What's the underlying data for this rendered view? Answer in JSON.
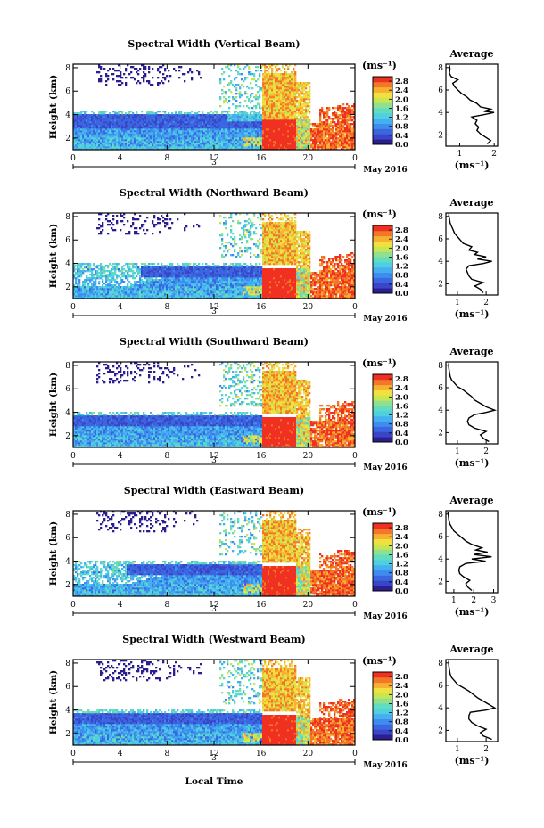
{
  "figure": {
    "xlabel": "Local Time",
    "day_label": "3",
    "month_label": "May 2016",
    "colors": [
      "#2b1f8f",
      "#3a45c8",
      "#3a66e0",
      "#3f8cf0",
      "#45b0f0",
      "#50cfe0",
      "#60dcc0",
      "#90e090",
      "#c8e650",
      "#f0e040",
      "#f8b030",
      "#f07828",
      "#f03020"
    ]
  },
  "chart_data": [
    {
      "type": "heatmap",
      "title": "Spectral Width (Vertical Beam)",
      "ylabel": "Height (km)",
      "x_ticks": [
        "0",
        "4",
        "8",
        "12",
        "16",
        "20",
        "0"
      ],
      "y_ticks": [
        "2",
        "4",
        "6",
        "8"
      ],
      "xlim": [
        0,
        24
      ],
      "ylim": [
        1,
        8.3
      ],
      "colorbar": {
        "label": "(ms⁻¹)",
        "ticks": [
          "0.0",
          "0.4",
          "0.8",
          "1.2",
          "1.6",
          "2.0",
          "2.4",
          "2.8"
        ],
        "range": [
          0,
          3.0
        ]
      },
      "profile": {
        "title": "Average",
        "xlabel": "(ms⁻¹)",
        "x_ticks": [
          "1",
          "2"
        ],
        "xlim": [
          0.6,
          2.1
        ],
        "y_ticks": [
          "2",
          "4",
          "6",
          "8"
        ],
        "points": [
          [
            1.8,
            1.2
          ],
          [
            1.9,
            1.5
          ],
          [
            1.75,
            1.8
          ],
          [
            1.6,
            2.1
          ],
          [
            1.5,
            2.4
          ],
          [
            1.55,
            2.7
          ],
          [
            1.45,
            3.0
          ],
          [
            1.5,
            3.3
          ],
          [
            1.35,
            3.6
          ],
          [
            1.7,
            3.8
          ],
          [
            1.85,
            3.9
          ],
          [
            2.0,
            4.0
          ],
          [
            1.7,
            4.1
          ],
          [
            1.9,
            4.3
          ],
          [
            1.6,
            4.5
          ],
          [
            1.5,
            4.8
          ],
          [
            1.3,
            5.1
          ],
          [
            1.2,
            5.4
          ],
          [
            1.05,
            5.7
          ],
          [
            0.95,
            6.0
          ],
          [
            0.85,
            6.3
          ],
          [
            0.8,
            6.6
          ],
          [
            0.95,
            6.9
          ],
          [
            0.75,
            7.2
          ],
          [
            0.7,
            7.5
          ],
          [
            0.72,
            7.9
          ],
          [
            0.7,
            8.2
          ]
        ]
      }
    },
    {
      "type": "heatmap",
      "title": "Spectral Width (Northward Beam)",
      "ylabel": "Height (km)",
      "x_ticks": [
        "0",
        "4",
        "8",
        "12",
        "16",
        "20",
        "0"
      ],
      "y_ticks": [
        "2",
        "4",
        "6",
        "8"
      ],
      "xlim": [
        0,
        24
      ],
      "ylim": [
        1,
        8.3
      ],
      "colorbar": {
        "label": "(ms⁻¹)",
        "ticks": [
          "0.0",
          "0.4",
          "0.8",
          "1.2",
          "1.6",
          "2.0",
          "2.4",
          "2.8"
        ],
        "range": [
          0,
          3.0
        ]
      },
      "profile": {
        "title": "Average",
        "xlabel": "(ms⁻¹)",
        "x_ticks": [
          "1",
          "2"
        ],
        "xlim": [
          0.6,
          2.4
        ],
        "y_ticks": [
          "2",
          "4",
          "6",
          "8"
        ],
        "points": [
          [
            1.9,
            1.2
          ],
          [
            1.8,
            1.5
          ],
          [
            1.6,
            1.8
          ],
          [
            1.9,
            2.1
          ],
          [
            1.5,
            2.4
          ],
          [
            1.4,
            2.7
          ],
          [
            1.35,
            3.0
          ],
          [
            1.3,
            3.3
          ],
          [
            1.4,
            3.6
          ],
          [
            1.9,
            3.8
          ],
          [
            2.2,
            4.0
          ],
          [
            1.7,
            4.2
          ],
          [
            2.0,
            4.4
          ],
          [
            1.6,
            4.6
          ],
          [
            1.7,
            4.8
          ],
          [
            1.4,
            5.0
          ],
          [
            1.5,
            5.3
          ],
          [
            1.2,
            5.6
          ],
          [
            1.1,
            5.9
          ],
          [
            1.0,
            6.2
          ],
          [
            0.9,
            6.5
          ],
          [
            0.85,
            6.8
          ],
          [
            0.8,
            7.1
          ],
          [
            0.75,
            7.4
          ],
          [
            0.72,
            7.8
          ],
          [
            0.7,
            8.2
          ]
        ]
      }
    },
    {
      "type": "heatmap",
      "title": "Spectral Width (Southward Beam)",
      "ylabel": "Height (km)",
      "x_ticks": [
        "0",
        "4",
        "8",
        "12",
        "16",
        "20",
        "0"
      ],
      "y_ticks": [
        "2",
        "4",
        "6",
        "8"
      ],
      "xlim": [
        0,
        24
      ],
      "ylim": [
        1,
        8.3
      ],
      "colorbar": {
        "label": "(ms⁻¹)",
        "ticks": [
          "0.0",
          "0.4",
          "0.8",
          "1.2",
          "1.6",
          "2.0",
          "2.4",
          "2.8"
        ],
        "range": [
          0,
          3.0
        ]
      },
      "profile": {
        "title": "Average",
        "xlabel": "(ms⁻¹)",
        "x_ticks": [
          "1",
          "2"
        ],
        "xlim": [
          0.6,
          2.4
        ],
        "y_ticks": [
          "2",
          "4",
          "6",
          "8"
        ],
        "points": [
          [
            2.1,
            1.2
          ],
          [
            1.9,
            1.5
          ],
          [
            1.8,
            1.8
          ],
          [
            2.0,
            2.1
          ],
          [
            1.6,
            2.4
          ],
          [
            1.4,
            2.7
          ],
          [
            1.35,
            3.0
          ],
          [
            1.4,
            3.3
          ],
          [
            1.6,
            3.6
          ],
          [
            2.0,
            3.8
          ],
          [
            2.3,
            4.0
          ],
          [
            2.0,
            4.3
          ],
          [
            1.8,
            4.6
          ],
          [
            1.6,
            4.9
          ],
          [
            1.5,
            5.2
          ],
          [
            1.35,
            5.5
          ],
          [
            1.2,
            5.8
          ],
          [
            1.0,
            6.1
          ],
          [
            0.9,
            6.4
          ],
          [
            0.8,
            6.7
          ],
          [
            0.75,
            7.0
          ],
          [
            0.72,
            7.4
          ],
          [
            0.7,
            7.8
          ],
          [
            0.7,
            8.2
          ]
        ]
      }
    },
    {
      "type": "heatmap",
      "title": "Spectral Width (Eastward Beam)",
      "ylabel": "Height (km)",
      "x_ticks": [
        "0",
        "4",
        "8",
        "12",
        "16",
        "20",
        "0"
      ],
      "y_ticks": [
        "2",
        "4",
        "6",
        "8"
      ],
      "xlim": [
        0,
        24
      ],
      "ylim": [
        1,
        8.3
      ],
      "colorbar": {
        "label": "(ms⁻¹)",
        "ticks": [
          "0.0",
          "0.4",
          "0.8",
          "1.2",
          "1.6",
          "2.0",
          "2.4",
          "2.8"
        ],
        "range": [
          0,
          3.0
        ]
      },
      "profile": {
        "title": "Average",
        "xlabel": "(ms⁻¹)",
        "x_ticks": [
          "1",
          "2",
          "3"
        ],
        "xlim": [
          0.6,
          3.2
        ],
        "y_ticks": [
          "2",
          "4",
          "6",
          "8"
        ],
        "points": [
          [
            1.9,
            1.2
          ],
          [
            1.7,
            1.5
          ],
          [
            1.6,
            1.8
          ],
          [
            1.8,
            2.1
          ],
          [
            1.5,
            2.4
          ],
          [
            1.3,
            2.7
          ],
          [
            1.25,
            3.0
          ],
          [
            1.3,
            3.3
          ],
          [
            1.6,
            3.6
          ],
          [
            2.6,
            3.8
          ],
          [
            1.9,
            4.0
          ],
          [
            2.9,
            4.2
          ],
          [
            2.0,
            4.4
          ],
          [
            2.7,
            4.6
          ],
          [
            2.1,
            4.8
          ],
          [
            2.4,
            5.0
          ],
          [
            1.9,
            5.3
          ],
          [
            1.6,
            5.6
          ],
          [
            1.4,
            5.9
          ],
          [
            1.2,
            6.2
          ],
          [
            1.0,
            6.5
          ],
          [
            0.9,
            6.8
          ],
          [
            0.8,
            7.1
          ],
          [
            0.75,
            7.5
          ],
          [
            0.72,
            7.9
          ],
          [
            0.7,
            8.2
          ]
        ]
      }
    },
    {
      "type": "heatmap",
      "title": "Spectral Width (Westward Beam)",
      "ylabel": "Height (km)",
      "x_ticks": [
        "0",
        "4",
        "8",
        "12",
        "16",
        "20",
        "0"
      ],
      "y_ticks": [
        "2",
        "4",
        "6",
        "8"
      ],
      "xlim": [
        0,
        24
      ],
      "ylim": [
        1,
        8.3
      ],
      "colorbar": {
        "label": "(ms⁻¹)",
        "ticks": [
          "0.0",
          "0.4",
          "0.8",
          "1.2",
          "1.6",
          "2.0",
          "2.4",
          "2.8"
        ],
        "range": [
          0,
          3.0
        ]
      },
      "profile": {
        "title": "Average",
        "xlabel": "(ms⁻¹)",
        "x_ticks": [
          "1",
          "2"
        ],
        "xlim": [
          0.6,
          2.4
        ],
        "y_ticks": [
          "2",
          "4",
          "6",
          "8"
        ],
        "points": [
          [
            2.2,
            1.2
          ],
          [
            1.9,
            1.5
          ],
          [
            1.8,
            1.8
          ],
          [
            2.0,
            2.1
          ],
          [
            1.7,
            2.4
          ],
          [
            1.5,
            2.7
          ],
          [
            1.4,
            3.0
          ],
          [
            1.4,
            3.3
          ],
          [
            1.45,
            3.6
          ],
          [
            2.0,
            3.8
          ],
          [
            2.3,
            4.0
          ],
          [
            2.1,
            4.3
          ],
          [
            1.9,
            4.6
          ],
          [
            1.7,
            4.9
          ],
          [
            1.55,
            5.2
          ],
          [
            1.4,
            5.5
          ],
          [
            1.2,
            5.8
          ],
          [
            1.0,
            6.1
          ],
          [
            0.9,
            6.4
          ],
          [
            0.8,
            6.7
          ],
          [
            0.75,
            7.0
          ],
          [
            0.72,
            7.4
          ],
          [
            0.7,
            7.8
          ],
          [
            0.7,
            8.2
          ]
        ]
      }
    }
  ]
}
